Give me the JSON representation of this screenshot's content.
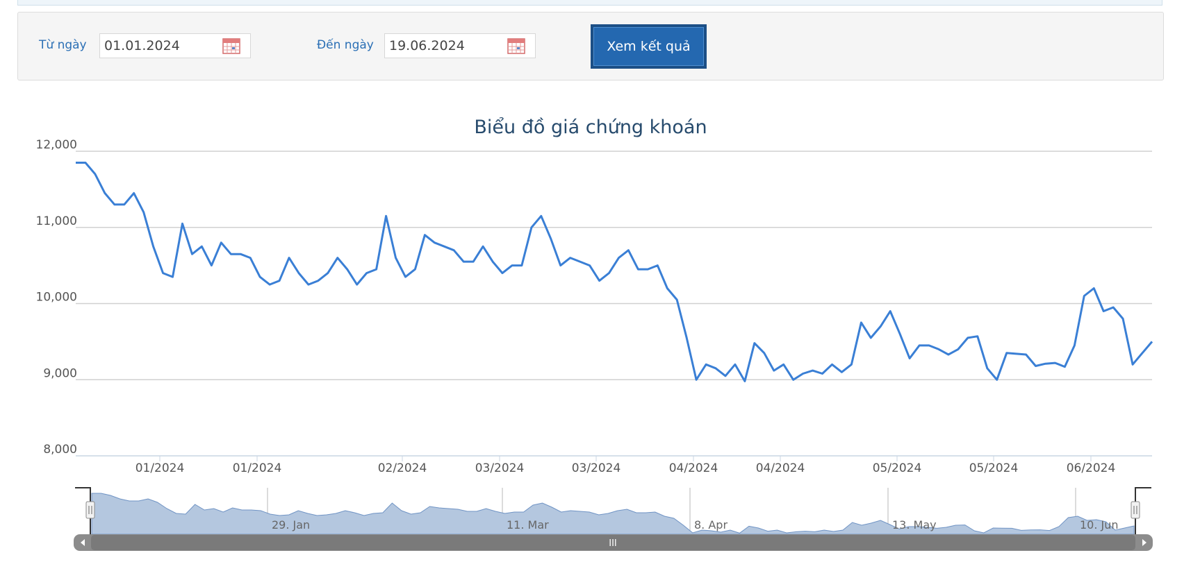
{
  "filter": {
    "from_label": "Từ ngày",
    "from_value": "01.01.2024",
    "to_label": "Đến ngày",
    "to_value": "19.06.2024",
    "submit_label": "Xem kết quả",
    "icon": "calendar-icon"
  },
  "colors": {
    "line": "#3a7fd5",
    "navigator_fill": "#b4c7df",
    "navigator_line": "#6f93c4",
    "button": "#2468b0",
    "label": "#2a6fb5"
  },
  "navigator": {
    "labels": [
      "29. Jan",
      "11. Mar",
      "8. Apr",
      "13. May",
      "10. Jun"
    ],
    "scrollbar_grip": "III"
  },
  "chart_data": {
    "type": "line",
    "title": "Biểu đồ giá chứng khoán",
    "xlabel": "",
    "ylabel": "",
    "ylim": [
      8000,
      12000
    ],
    "y_ticks": [
      "12,000",
      "11,000",
      "10,000",
      "9,000",
      "8,000"
    ],
    "x_tick_labels": [
      "01/2024",
      "01/2024",
      "02/2024",
      "03/2024",
      "03/2024",
      "04/2024",
      "04/2024",
      "05/2024",
      "05/2024",
      "06/2024"
    ],
    "grid": true,
    "legend": "none",
    "series": [
      {
        "values": [
          11850,
          11850,
          11700,
          11450,
          11300,
          11300,
          11450,
          11200,
          10750,
          10400,
          10350,
          11050,
          10650,
          10750,
          10500,
          10800,
          10650,
          10650,
          10600,
          10350,
          10250,
          10300,
          10600,
          10400,
          10250,
          10300,
          10400,
          10600,
          10450,
          10250,
          10400,
          10450,
          11150,
          10600,
          10350,
          10450,
          10900,
          10800,
          10750,
          10700,
          10550,
          10550,
          10750,
          10550,
          10400,
          10500,
          10500,
          11000,
          11150,
          10850,
          10500,
          10600,
          10550,
          10500,
          10300,
          10400,
          10600,
          10700,
          10450,
          10450,
          10500,
          10200,
          10050,
          9550,
          9000,
          9200,
          9150,
          9050,
          9200,
          8980,
          9480,
          9350,
          9120,
          9200,
          9000,
          9080,
          9120,
          9080,
          9200,
          9100,
          9200,
          9750,
          9550,
          9700,
          9900,
          9600,
          9280,
          9450,
          9450,
          9400,
          9330,
          9400,
          9550,
          9570,
          9150,
          9000,
          9350,
          9340,
          9330,
          9180,
          9210,
          9220,
          9170,
          9450,
          10100,
          10200,
          9900,
          9950,
          9800,
          9200,
          9350,
          9500
        ]
      }
    ]
  }
}
